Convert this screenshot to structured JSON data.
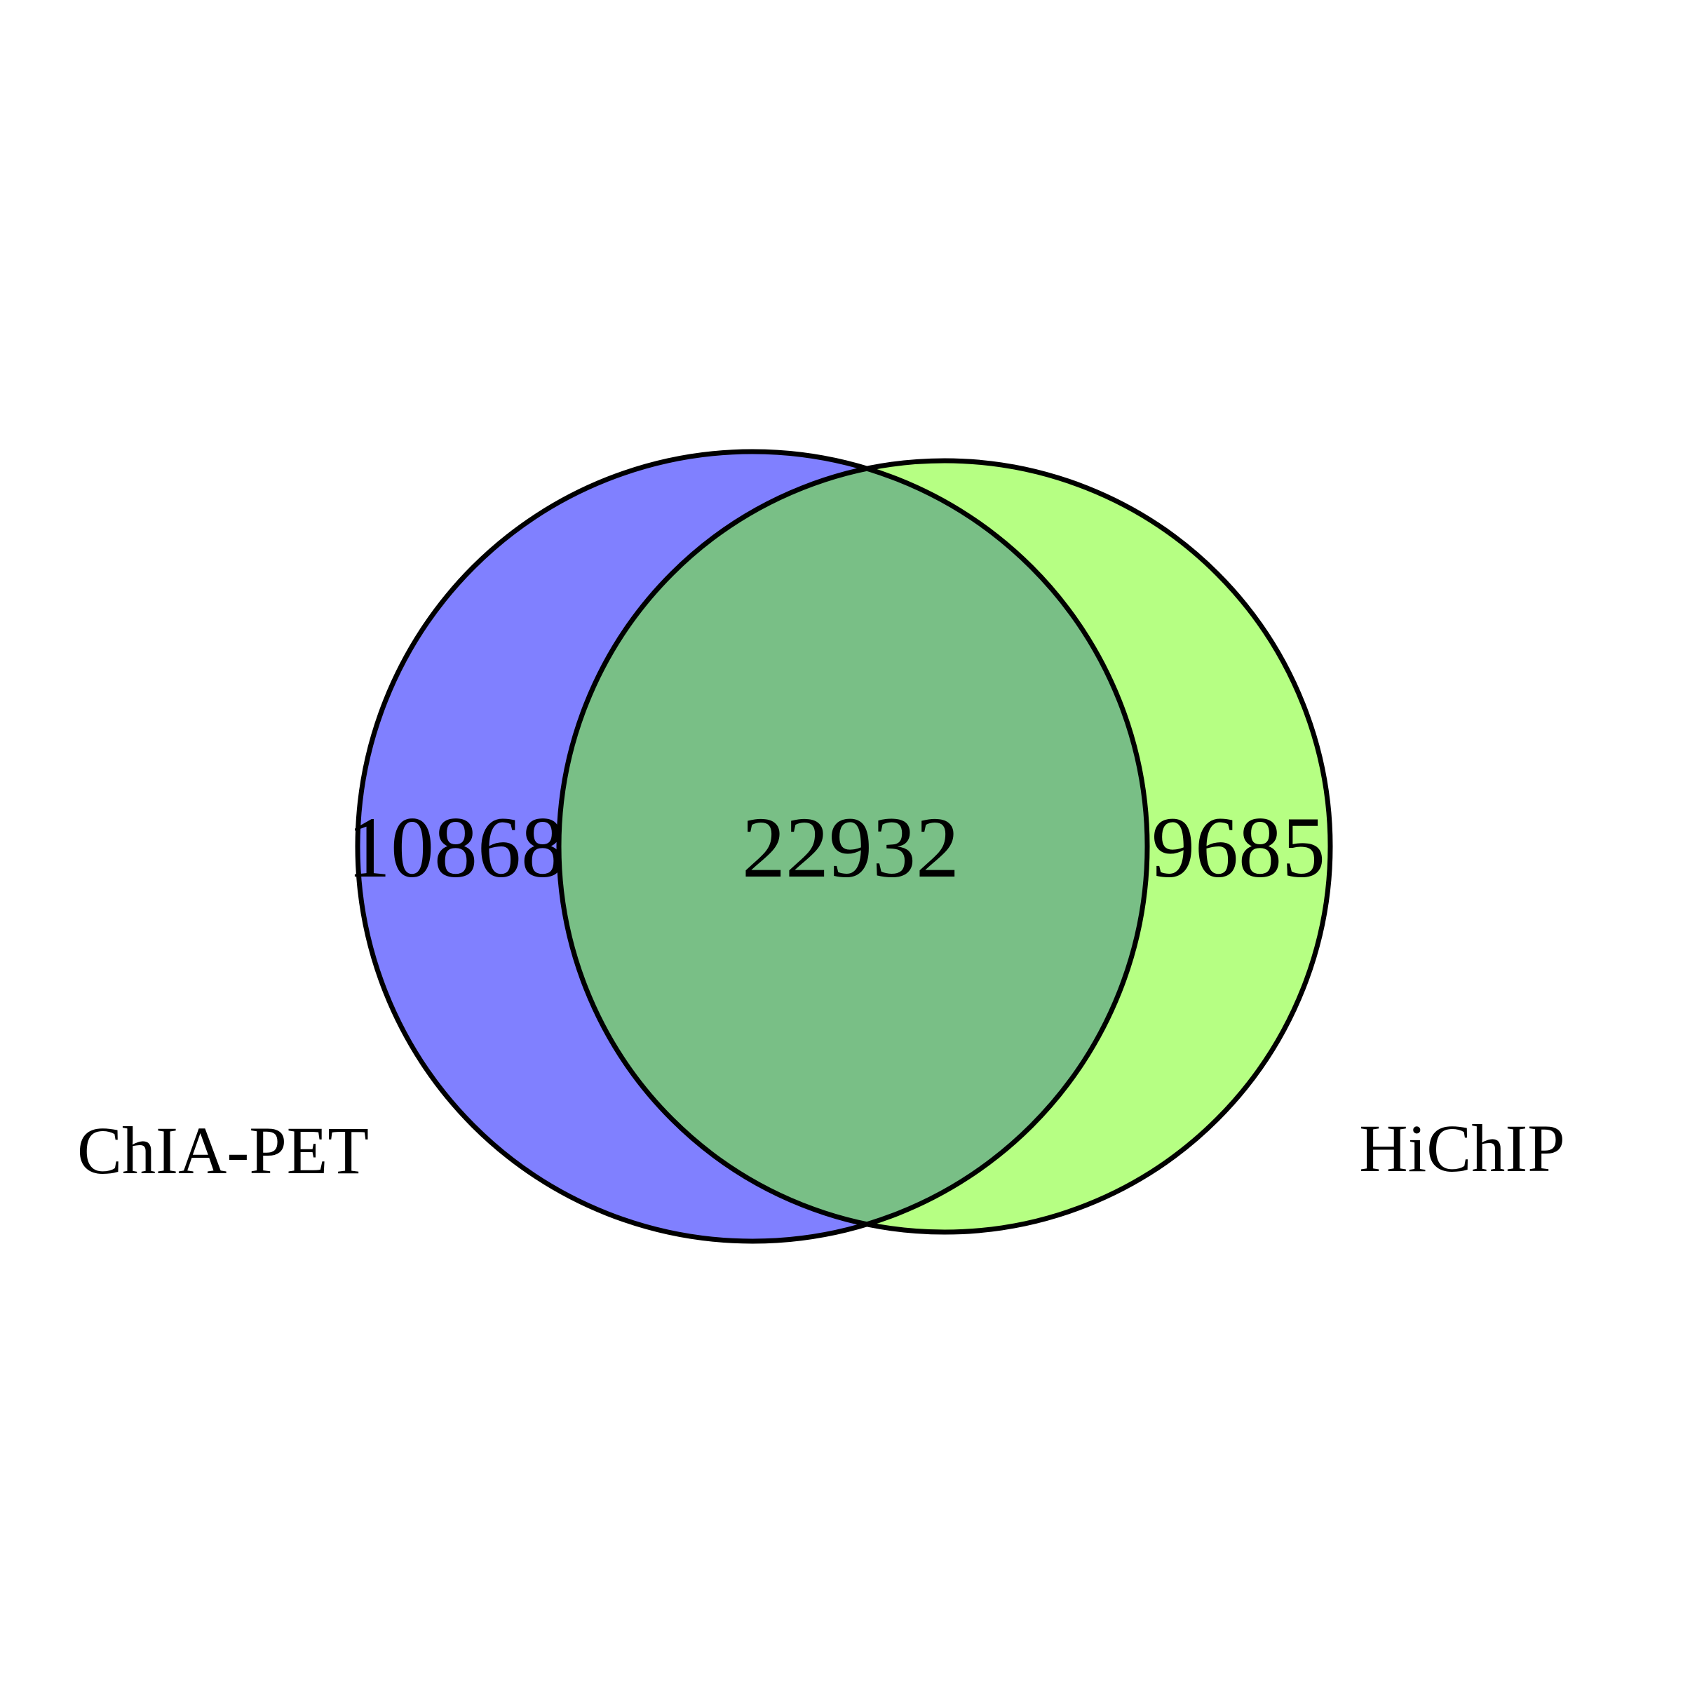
{
  "diagram": {
    "type": "venn-2",
    "sets": [
      {
        "name": "ChIA-PET",
        "color": "#8080ff"
      },
      {
        "name": "HiChIP",
        "color": "#b6ff83"
      }
    ],
    "regions": {
      "left_only": "10868",
      "intersection": "22932",
      "right_only": "9685"
    },
    "intersection_color": "#79bf86",
    "outline_color": "#000000"
  }
}
